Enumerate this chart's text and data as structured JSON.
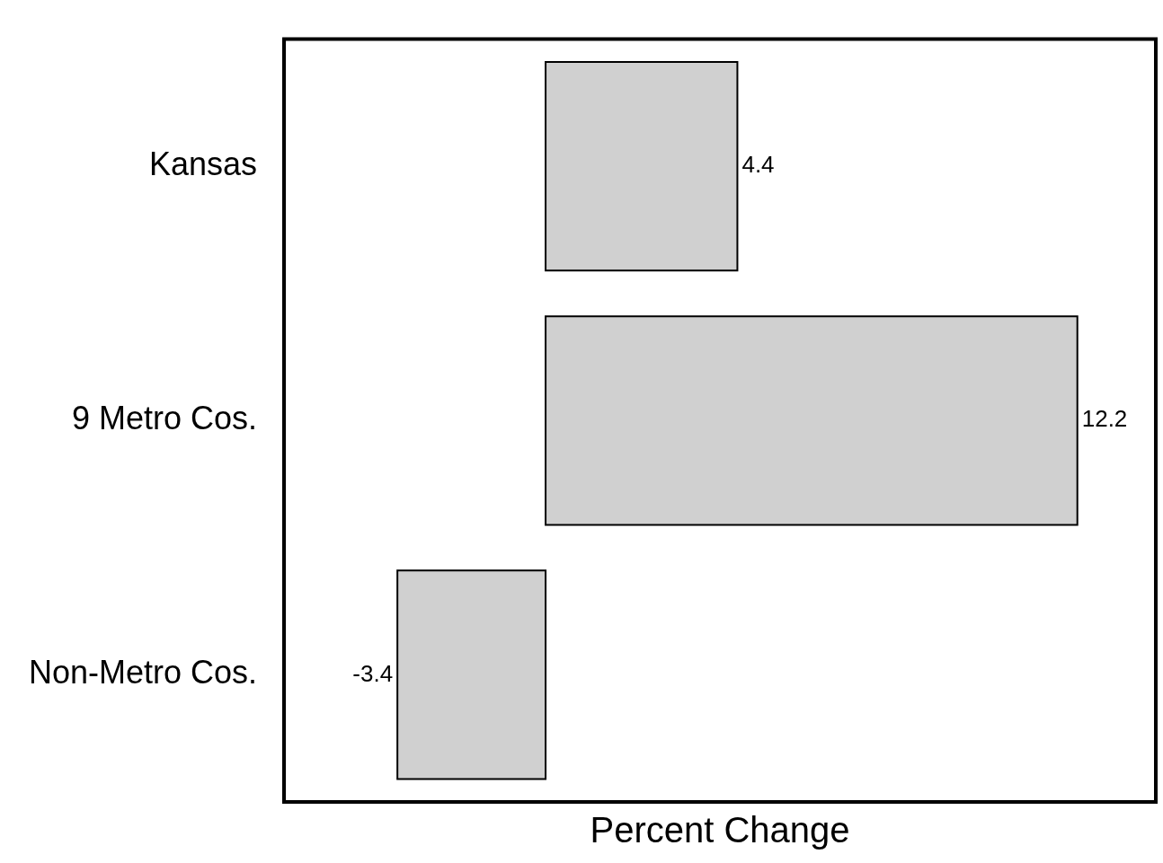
{
  "chart_data": {
    "type": "bar",
    "orientation": "horizontal",
    "xlabel": "Percent Change",
    "categories": [
      "Kansas",
      "9 Metro Cos.",
      "Non-Metro Cos."
    ],
    "values": [
      4.4,
      12.2,
      -3.4
    ],
    "color": "#d0d0d0",
    "data_labels": true,
    "tick_labels": "y"
  }
}
